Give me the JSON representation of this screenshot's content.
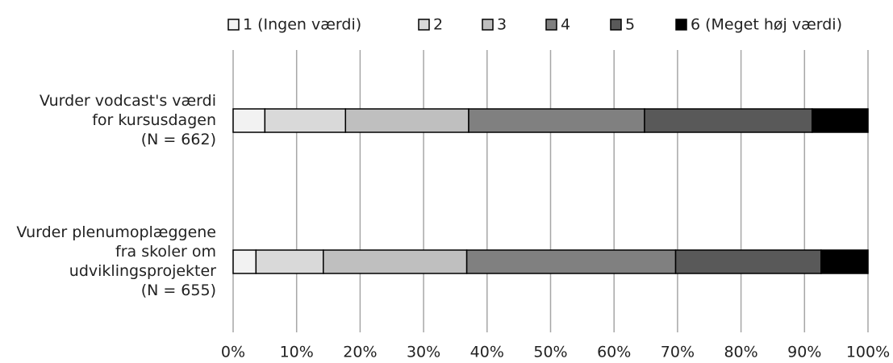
{
  "chart_data": {
    "type": "stacked-bar-horizontal",
    "categories": [
      [
        "Vurder vodcast's værdi",
        "for kursusdagen",
        "(N = 662)"
      ],
      [
        "Vurder plenumoplæggene",
        "fra skoler om",
        "udviklingsprojekter",
        "(N = 655)"
      ]
    ],
    "series": [
      {
        "name": "1 (Ingen værdi)",
        "color": "#f2f2f2",
        "values": [
          5,
          3.6
        ]
      },
      {
        "name": "2",
        "color": "#d9d9d9",
        "values": [
          12.7,
          10.6
        ]
      },
      {
        "name": "3",
        "color": "#bfbfbf",
        "values": [
          19.4,
          22.6
        ]
      },
      {
        "name": "4",
        "color": "#808080",
        "values": [
          27.7,
          32.9
        ]
      },
      {
        "name": "5",
        "color": "#595959",
        "values": [
          26.4,
          22.9
        ]
      },
      {
        "name": "6 (Meget høj værdi)",
        "color": "#000000",
        "values": [
          8.8,
          7.4
        ]
      }
    ],
    "xlim": [
      0,
      100
    ],
    "xticks": [
      {
        "value": 0,
        "label": "0%"
      },
      {
        "value": 10,
        "label": "10%"
      },
      {
        "value": 20,
        "label": "20%"
      },
      {
        "value": 30,
        "label": "30%"
      },
      {
        "value": 40,
        "label": "40%"
      },
      {
        "value": 50,
        "label": "50%"
      },
      {
        "value": 60,
        "label": "60%"
      },
      {
        "value": 70,
        "label": "70%"
      },
      {
        "value": 80,
        "label": "80%"
      },
      {
        "value": 90,
        "label": "90%"
      },
      {
        "value": 100,
        "label": "100%"
      }
    ],
    "grid": true,
    "legend": "top"
  }
}
